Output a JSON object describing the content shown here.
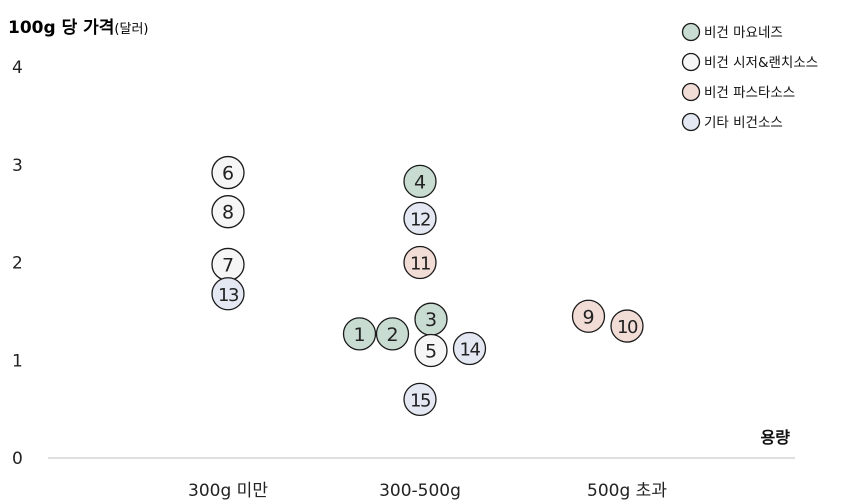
{
  "chart_data": {
    "type": "scatter",
    "ylabel": "100g 당 가격",
    "ylabel_unit": "(달러)",
    "xlabel": "용량",
    "ylim": [
      0,
      4
    ],
    "yticks": [
      "0",
      "1",
      "2",
      "3",
      "4"
    ],
    "categories": [
      "300g 미만",
      "300-500g",
      "500g 초과"
    ],
    "legend_position": "top-right",
    "series": [
      {
        "name": "비건 마요네즈",
        "color": "#c9dcd2",
        "points": [
          {
            "label": "1",
            "category": "300-500g",
            "offset": -0.55,
            "y": 1.27
          },
          {
            "label": "2",
            "category": "300-500g",
            "offset": -0.25,
            "y": 1.27
          },
          {
            "label": "3",
            "category": "300-500g",
            "offset": 0.1,
            "y": 1.42
          },
          {
            "label": "4",
            "category": "300-500g",
            "offset": 0.0,
            "y": 2.83
          }
        ]
      },
      {
        "name": "비건 시저&랜치소스",
        "color": "#f6f6f6",
        "points": [
          {
            "label": "5",
            "category": "300-500g",
            "offset": 0.1,
            "y": 1.1
          },
          {
            "label": "6",
            "category": "300g 미만",
            "offset": 0.0,
            "y": 2.92
          },
          {
            "label": "7",
            "category": "300g 미만",
            "offset": 0.0,
            "y": 1.98
          },
          {
            "label": "8",
            "category": "300g 미만",
            "offset": 0.0,
            "y": 2.52
          }
        ]
      },
      {
        "name": "비건 파스타소스",
        "color": "#f2ddd6",
        "points": [
          {
            "label": "9",
            "category": "500g 초과",
            "offset": -0.35,
            "y": 1.45
          },
          {
            "label": "10",
            "category": "500g 초과",
            "offset": 0.0,
            "y": 1.35
          },
          {
            "label": "11",
            "category": "300-500g",
            "offset": 0.0,
            "y": 2.0
          }
        ]
      },
      {
        "name": "기타 비건소스",
        "color": "#e3e8f2",
        "points": [
          {
            "label": "12",
            "category": "300-500g",
            "offset": 0.0,
            "y": 2.45
          },
          {
            "label": "13",
            "category": "300g 미만",
            "offset": 0.0,
            "y": 1.68
          },
          {
            "label": "14",
            "category": "300-500g",
            "offset": 0.45,
            "y": 1.12
          },
          {
            "label": "15",
            "category": "300-500g",
            "offset": 0.0,
            "y": 0.6
          }
        ]
      }
    ]
  }
}
